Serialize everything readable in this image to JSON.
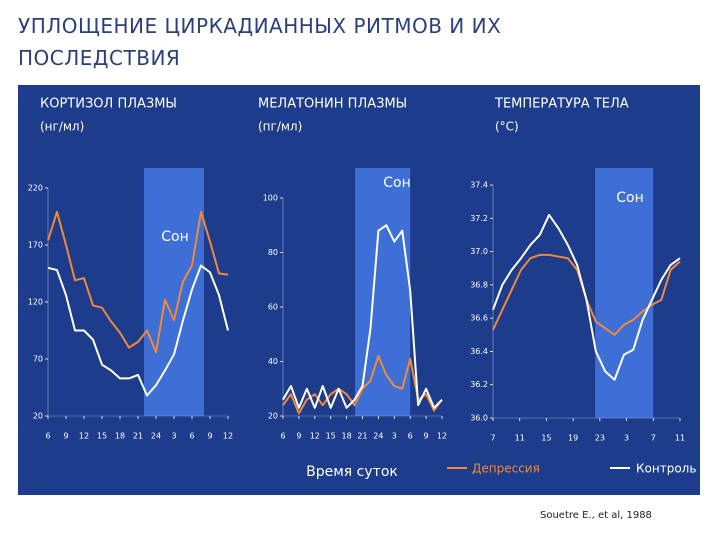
{
  "header": {
    "title": "УПЛОЩЕНИЕ ЦИРКАДИАННЫХ РИТМОВ И ИХ ПОСЛЕДСТВИЯ"
  },
  "x_axis_label": "Время суток",
  "citation": "Souetre E., et al, 1988",
  "chart_data": [
    {
      "type": "line",
      "title": "КОРТИЗОЛ ПЛАЗМЫ",
      "unit": "(нг/мл)",
      "sleep_label": "Сон",
      "sleep": [
        22,
        32
      ],
      "xlim": [
        6,
        36
      ],
      "xticks": [
        6,
        9,
        12,
        15,
        18,
        21,
        24,
        {
          "value": 27,
          "label": "3"
        },
        {
          "value": 30,
          "label": "6"
        },
        {
          "value": 33,
          "label": "9"
        },
        {
          "value": 36,
          "label": "12"
        }
      ],
      "ylim": [
        20,
        220
      ],
      "yticks": [
        20,
        70,
        120,
        170,
        220
      ],
      "x": [
        6,
        7.5,
        9,
        10.5,
        12,
        13.5,
        15,
        16.5,
        18,
        19.5,
        21,
        22.5,
        24,
        25.5,
        27,
        28.5,
        30,
        31.5,
        33,
        34.5,
        36
      ],
      "series": [
        {
          "name": "Депрессия",
          "color": "#f0893a",
          "values": [
            174,
            199,
            170,
            139,
            141,
            117,
            115,
            103,
            93,
            80,
            85,
            95,
            76,
            122,
            104,
            138,
            152,
            199,
            173,
            145,
            144
          ]
        },
        {
          "name": "Контроль",
          "color": "#ffffff",
          "values": [
            150,
            148,
            126,
            95,
            95,
            87,
            65,
            60,
            53,
            53,
            56,
            38,
            47,
            60,
            74,
            104,
            131,
            152,
            146,
            126,
            95
          ]
        }
      ]
    },
    {
      "type": "line",
      "title": "МЕЛАТОНИН ПЛАЗМЫ",
      "unit": "(пг/мл)",
      "sleep_label": "Сон",
      "sleep": [
        19.6,
        30
      ],
      "xlim": [
        6,
        36
      ],
      "xticks": [
        6,
        9,
        12,
        15,
        18,
        21,
        24,
        {
          "value": 27,
          "label": "3"
        },
        {
          "value": 30,
          "label": "6"
        },
        {
          "value": 33,
          "label": "9"
        },
        {
          "value": 36,
          "label": "12"
        }
      ],
      "ylim": [
        20,
        100
      ],
      "yticks": [
        20,
        40,
        60,
        80,
        100
      ],
      "x": [
        6,
        7.5,
        9,
        10.5,
        12,
        13.5,
        15,
        16.5,
        18,
        19.5,
        21,
        22.5,
        24,
        25.5,
        27,
        28.5,
        30,
        31.5,
        33,
        34.5,
        36
      ],
      "series": [
        {
          "name": "Депрессия",
          "color": "#f0893a",
          "values": [
            24,
            28,
            21,
            26,
            28,
            24,
            28,
            30,
            28,
            24,
            30,
            33,
            42,
            35,
            31,
            30,
            41,
            26,
            28,
            22,
            26
          ]
        },
        {
          "name": "Контроль",
          "color": "#ffffff",
          "values": [
            26,
            31,
            23,
            30,
            23,
            31,
            23,
            30,
            23,
            26,
            31,
            52,
            88,
            90,
            84,
            88,
            66,
            24,
            30,
            23,
            26
          ]
        }
      ]
    },
    {
      "type": "line",
      "title": "ТЕМПЕРАТУРА ТЕЛА",
      "unit": "(°C)",
      "sleep_label": "Сон",
      "sleep": [
        22.3,
        31
      ],
      "xlim": [
        7,
        35
      ],
      "xticks": [
        7,
        11,
        15,
        19,
        23,
        {
          "value": 27,
          "label": "3"
        },
        {
          "value": 31,
          "label": "7"
        },
        {
          "value": 35,
          "label": "11"
        }
      ],
      "ylim": [
        36,
        37.4
      ],
      "yticks": [
        {
          "value": 36,
          "label": "36.0"
        },
        36.2,
        36.4,
        36.6,
        36.8,
        {
          "value": 37,
          "label": "37.0"
        },
        37.2,
        37.4
      ],
      "x": [
        7,
        8.4,
        9.8,
        11.2,
        12.6,
        14,
        15.4,
        16.8,
        18.2,
        19.6,
        21,
        22.4,
        23.8,
        25.2,
        26.6,
        28,
        29.4,
        30.8,
        32.2,
        33.6,
        35
      ],
      "series": [
        {
          "name": "Депрессия",
          "color": "#f0893a",
          "values": [
            36.53,
            36.65,
            36.77,
            36.89,
            36.96,
            36.98,
            36.98,
            36.97,
            36.96,
            36.89,
            36.71,
            36.58,
            36.54,
            36.5,
            36.56,
            36.59,
            36.64,
            36.68,
            36.71,
            36.89,
            36.94
          ]
        },
        {
          "name": "Контроль",
          "color": "#ffffff",
          "values": [
            36.65,
            36.8,
            36.89,
            36.96,
            37.04,
            37.1,
            37.22,
            37.14,
            37.04,
            36.92,
            36.71,
            36.4,
            36.28,
            36.23,
            36.38,
            36.41,
            36.59,
            36.71,
            36.83,
            36.92,
            36.96
          ]
        }
      ]
    }
  ]
}
